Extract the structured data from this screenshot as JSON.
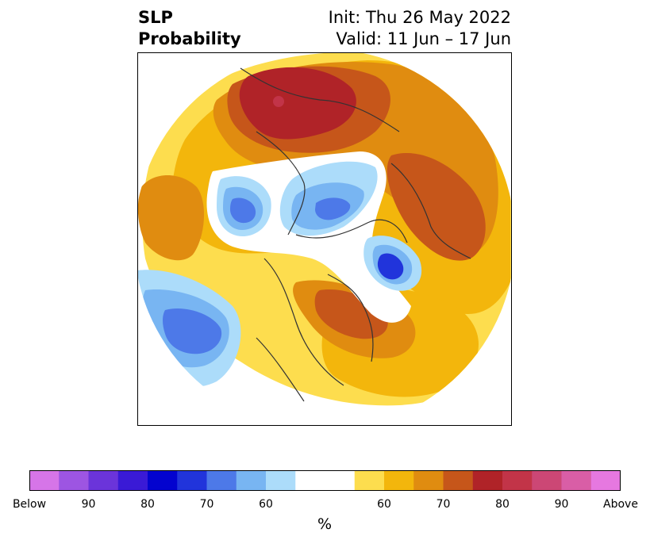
{
  "title": {
    "variable_line1": "SLP",
    "variable_line2": "Probability",
    "init_text": "Init: Thu 26 May 2022",
    "valid_text": "Valid: 11 Jun – 17 Jun"
  },
  "map": {
    "projection": "north-polar-stereographic",
    "field": "sea level pressure tercile probability"
  },
  "colorbar": {
    "label": "%",
    "tick_labels": [
      "Below",
      "90",
      "80",
      "70",
      "60",
      "60",
      "70",
      "80",
      "90",
      "Above"
    ],
    "below_colors": [
      "#d675e8",
      "#9d55e2",
      "#6b34da",
      "#3a1ad6",
      "#0303cf",
      "#2134db",
      "#4d79e8",
      "#78b5f2",
      "#acdcfa"
    ],
    "neutral_color": "#ffffff",
    "above_colors": [
      "#fddd4e",
      "#f3b60c",
      "#e08c10",
      "#c6561a",
      "#b02328",
      "#c23448",
      "#cc4775",
      "#d95ea6",
      "#e678e0"
    ]
  }
}
